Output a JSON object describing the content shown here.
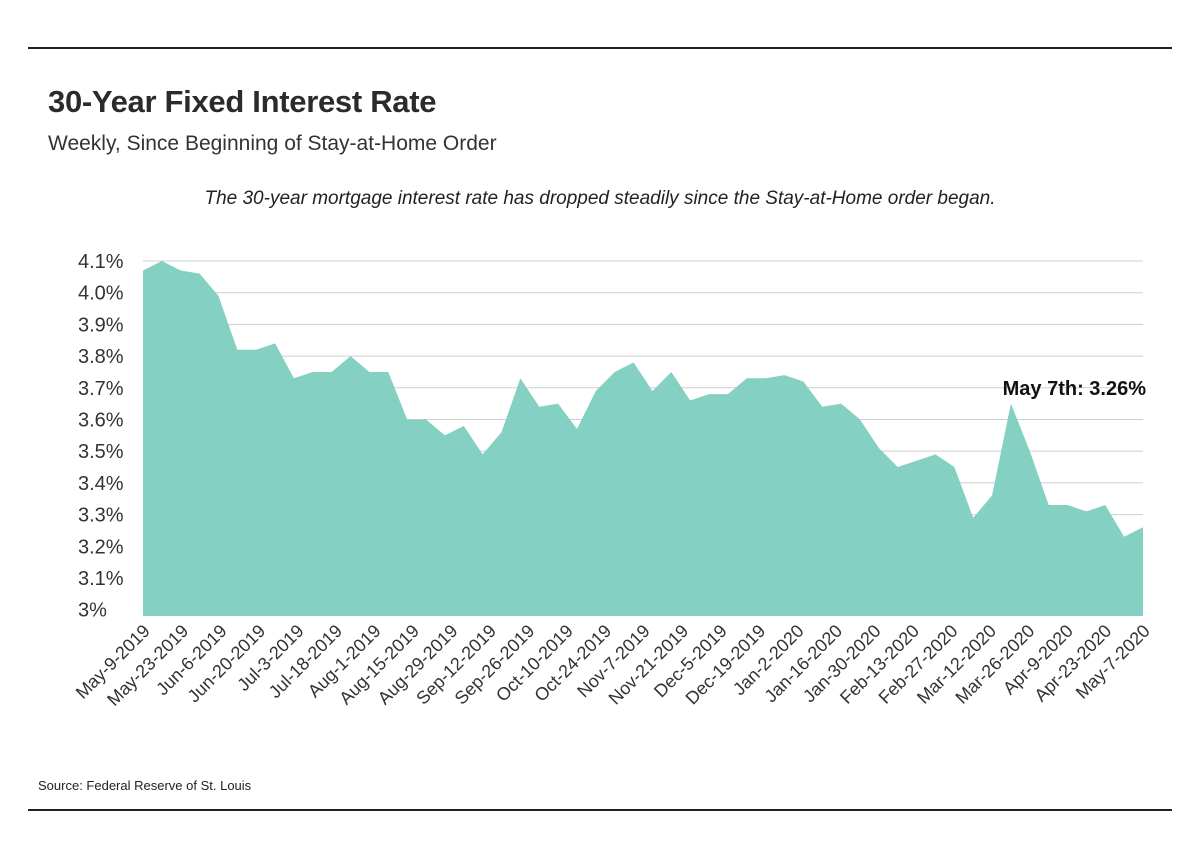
{
  "header": {
    "title": "30-Year Fixed Interest Rate",
    "subtitle": "Weekly, Since Beginning of Stay-at-Home Order",
    "annotation": "The 30-year mortgage interest rate has dropped steadily since the Stay-at-Home order began."
  },
  "footer": {
    "source": "Source:  Federal Reserve of St. Louis"
  },
  "colors": {
    "area_fill": "#84d0c2",
    "gridline": "#cfcfcf",
    "text": "#333333",
    "rule": "#222222"
  },
  "chart_data": {
    "type": "area",
    "title": "30-Year Fixed Interest Rate",
    "subtitle": "Weekly, Since Beginning of Stay-at-Home Order",
    "xlabel": "",
    "ylabel": "",
    "ylim": [
      2.98,
      4.1
    ],
    "grid": true,
    "legend": "none",
    "y_ticks": [
      3.0,
      3.1,
      3.2,
      3.3,
      3.4,
      3.5,
      3.6,
      3.7,
      3.8,
      3.9,
      4.0,
      4.1
    ],
    "y_tick_labels": [
      "3%",
      "3.1%",
      "3.2%",
      "3.3%",
      "3.4%",
      "3.5%",
      "3.6%",
      "3.7%",
      "3.8%",
      "3.9%",
      "4.0%",
      "4.1%"
    ],
    "x_tick_labels": [
      "May-9-2019",
      "May-23-2019",
      "Jun-6-2019",
      "Jun-20-2019",
      "Jul-3-2019",
      "Jul-18-2019",
      "Aug-1-2019",
      "Aug-15-2019",
      "Aug-29-2019",
      "Sep-12-2019",
      "Sep-26-2019",
      "Oct-10-2019",
      "Oct-24-2019",
      "Nov-7-2019",
      "Nov-21-2019",
      "Dec-5-2019",
      "Dec-19-2019",
      "Jan-2-2020",
      "Jan-16-2020",
      "Jan-30-2020",
      "Feb-13-2020",
      "Feb-27-2020",
      "Mar-12-2020",
      "Mar-26-2020",
      "Apr-9-2020",
      "Apr-23-2020",
      "May-7-2020"
    ],
    "values": [
      4.07,
      4.1,
      4.07,
      4.06,
      3.99,
      3.82,
      3.82,
      3.84,
      3.73,
      3.75,
      3.75,
      3.8,
      3.75,
      3.75,
      3.6,
      3.6,
      3.55,
      3.58,
      3.49,
      3.56,
      3.73,
      3.64,
      3.65,
      3.57,
      3.69,
      3.75,
      3.78,
      3.69,
      3.75,
      3.66,
      3.68,
      3.68,
      3.73,
      3.73,
      3.74,
      3.72,
      3.64,
      3.65,
      3.6,
      3.51,
      3.45,
      3.47,
      3.49,
      3.45,
      3.29,
      3.36,
      3.65,
      3.5,
      3.33,
      3.33,
      3.31,
      3.33,
      3.23,
      3.26
    ],
    "callout": "May 7th: 3.26%"
  }
}
